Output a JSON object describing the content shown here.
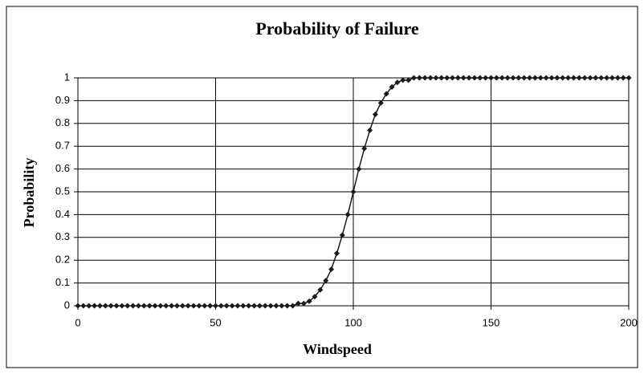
{
  "chart_data": {
    "type": "line",
    "title": "Probability of Failure",
    "x_label": "Windspeed",
    "y_label": "Probability",
    "x": [
      0,
      2,
      4,
      6,
      8,
      10,
      12,
      14,
      16,
      18,
      20,
      22,
      24,
      26,
      28,
      30,
      32,
      34,
      36,
      38,
      40,
      42,
      44,
      46,
      48,
      50,
      52,
      54,
      56,
      58,
      60,
      62,
      64,
      66,
      68,
      70,
      72,
      74,
      76,
      78,
      80,
      82,
      84,
      86,
      88,
      90,
      92,
      94,
      96,
      98,
      100,
      102,
      104,
      106,
      108,
      110,
      112,
      114,
      116,
      118,
      120,
      122,
      124,
      126,
      128,
      130,
      132,
      134,
      136,
      138,
      140,
      142,
      144,
      146,
      148,
      150,
      152,
      154,
      156,
      158,
      160,
      162,
      164,
      166,
      168,
      170,
      172,
      174,
      176,
      178,
      180,
      182,
      184,
      186,
      188,
      190,
      192,
      194,
      196,
      198,
      200
    ],
    "series": [
      {
        "color": "#1a1a1a",
        "values": [
          0,
          0,
          0,
          0,
          0,
          0,
          0,
          0,
          0,
          0,
          0,
          0,
          0,
          0,
          0,
          0,
          0,
          0,
          0,
          0,
          0,
          0,
          0,
          0,
          0,
          0,
          0,
          0,
          0,
          0,
          0,
          0,
          0,
          0,
          0,
          0,
          0,
          0,
          0,
          0,
          0.01,
          0.01,
          0.02,
          0.04,
          0.07,
          0.11,
          0.16,
          0.23,
          0.31,
          0.4,
          0.5,
          0.6,
          0.69,
          0.77,
          0.84,
          0.89,
          0.93,
          0.96,
          0.98,
          0.99,
          0.99,
          1,
          1,
          1,
          1,
          1,
          1,
          1,
          1,
          1,
          1,
          1,
          1,
          1,
          1,
          1,
          1,
          1,
          1,
          1,
          1,
          1,
          1,
          1,
          1,
          1,
          1,
          1,
          1,
          1,
          1,
          1,
          1,
          1,
          1,
          1,
          1,
          1,
          1,
          1,
          1
        ]
      }
    ],
    "xlim": [
      0,
      200
    ],
    "xticks": [
      0,
      50,
      100,
      150,
      200
    ],
    "ylim": [
      0,
      1
    ],
    "yticks": [
      0,
      0.1,
      0.2,
      0.3,
      0.4,
      0.5,
      0.6,
      0.7,
      0.8,
      0.9,
      1
    ],
    "grid": true
  }
}
